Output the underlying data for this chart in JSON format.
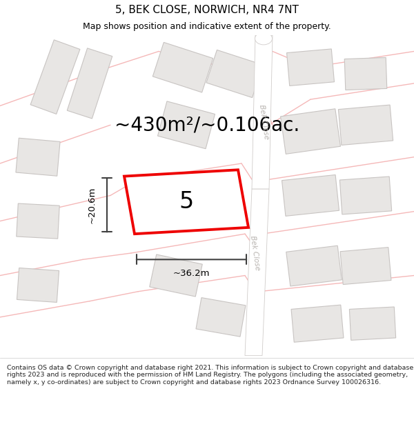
{
  "title": "5, BEK CLOSE, NORWICH, NR4 7NT",
  "subtitle": "Map shows position and indicative extent of the property.",
  "footer": "Contains OS data © Crown copyright and database right 2021. This information is subject to Crown copyright and database rights 2023 and is reproduced with the permission of HM Land Registry. The polygons (including the associated geometry, namely x, y co-ordinates) are subject to Crown copyright and database rights 2023 Ordnance Survey 100026316.",
  "area_label": "~430m²/~0.106ac.",
  "plot_number": "5",
  "width_label": "~36.2m",
  "height_label": "~20.6m",
  "map_bg": "#ffffff",
  "road_line_color": "#f5b8b8",
  "building_fill": "#e8e6e4",
  "building_edge": "#c8c4c2",
  "plot_color": "#ee0000",
  "dim_color": "#404040",
  "road_band_color": "#f0eeec",
  "road_band_edge": "#d0ccca",
  "road_label_color": "#b8b4b0",
  "title_fontsize": 11,
  "subtitle_fontsize": 9,
  "footer_fontsize": 6.8,
  "area_fontsize": 20,
  "plot_num_fontsize": 24,
  "dim_fontsize": 9.5
}
